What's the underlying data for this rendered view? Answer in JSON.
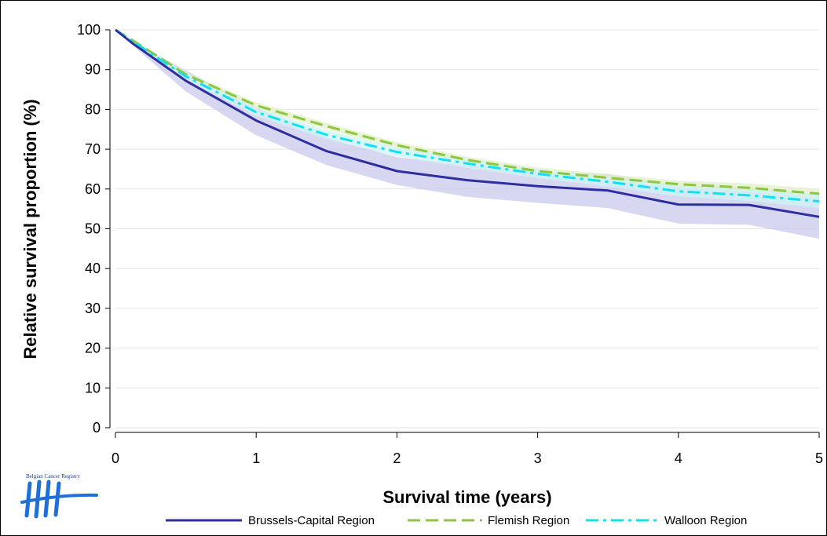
{
  "chart_data": {
    "type": "line",
    "xlabel": "Survival time (years)",
    "ylabel": "Relative survival proportion (%)",
    "xlim": [
      0,
      5
    ],
    "ylim": [
      0,
      100
    ],
    "x_ticks": [
      0,
      1,
      2,
      3,
      4,
      5
    ],
    "y_ticks": [
      0,
      10,
      20,
      30,
      40,
      50,
      60,
      70,
      80,
      90,
      100
    ],
    "grid": "horizontal",
    "legend_position": "bottom",
    "x": [
      0,
      0.125,
      0.5,
      1,
      1.5,
      2,
      2.5,
      3,
      3.5,
      4,
      4.5,
      5
    ],
    "series": [
      {
        "name": "Brussels-Capital Region",
        "color": "#2e2e9e",
        "dash": "solid",
        "values": [
          100,
          96.5,
          87.2,
          77.2,
          69.5,
          64.5,
          62.2,
          60.7,
          59.6,
          56.1,
          56.0,
          53.0
        ],
        "ci_lower": [
          100,
          96,
          84.5,
          73.5,
          66,
          61,
          58,
          56.5,
          55.2,
          51.3,
          51,
          47.5
        ],
        "ci_upper": [
          100,
          97,
          89.8,
          80.5,
          73,
          68,
          66,
          64.5,
          63.8,
          60.8,
          60.5,
          58.5
        ],
        "ci_color": "#c9c9ee"
      },
      {
        "name": "Flemish Region",
        "color": "#8dc63f",
        "dash": "long-dash",
        "values": [
          100,
          97.3,
          88.8,
          81.0,
          75.8,
          71.0,
          67.3,
          64.5,
          62.8,
          61.2,
          60.3,
          58.8
        ],
        "ci_lower": [
          100,
          97,
          88.2,
          80.2,
          75,
          70.2,
          66.5,
          63.7,
          62,
          60.3,
          59.3,
          57.6
        ],
        "ci_upper": [
          100,
          97.6,
          89.4,
          81.8,
          76.6,
          71.8,
          68.1,
          65.4,
          63.7,
          62.1,
          61.4,
          60.0
        ],
        "ci_color": "#e2f0c8"
      },
      {
        "name": "Walloon Region",
        "color": "#12e0f0",
        "dash": "dash-dot",
        "values": [
          100,
          97.0,
          88.3,
          79.3,
          73.6,
          69.3,
          66.4,
          63.8,
          61.8,
          59.4,
          58.4,
          56.9
        ],
        "ci_lower": [
          100,
          96.7,
          87.5,
          78.3,
          72.5,
          68.2,
          65.3,
          62.7,
          60.6,
          58.1,
          57,
          55.2
        ],
        "ci_upper": [
          100,
          97.3,
          89.1,
          80.3,
          74.7,
          70.4,
          67.5,
          64.9,
          63.0,
          60.7,
          59.8,
          58.6
        ],
        "ci_color": "#cdf4f4"
      }
    ]
  },
  "logo": {
    "text": "Belgian Cancer Registry",
    "color": "#1f6fd6"
  }
}
